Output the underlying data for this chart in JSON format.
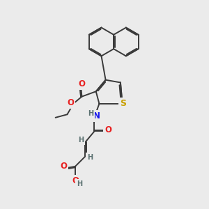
{
  "bg_color": "#ebebeb",
  "bond_color": "#3a3a3a",
  "bond_width": 1.4,
  "atom_colors": {
    "O": "#e82020",
    "S": "#c8a000",
    "N": "#1a1aee",
    "H": "#5a7070",
    "C": "#3a3a3a"
  },
  "font_size_atom": 8.5,
  "font_size_h": 7.0
}
